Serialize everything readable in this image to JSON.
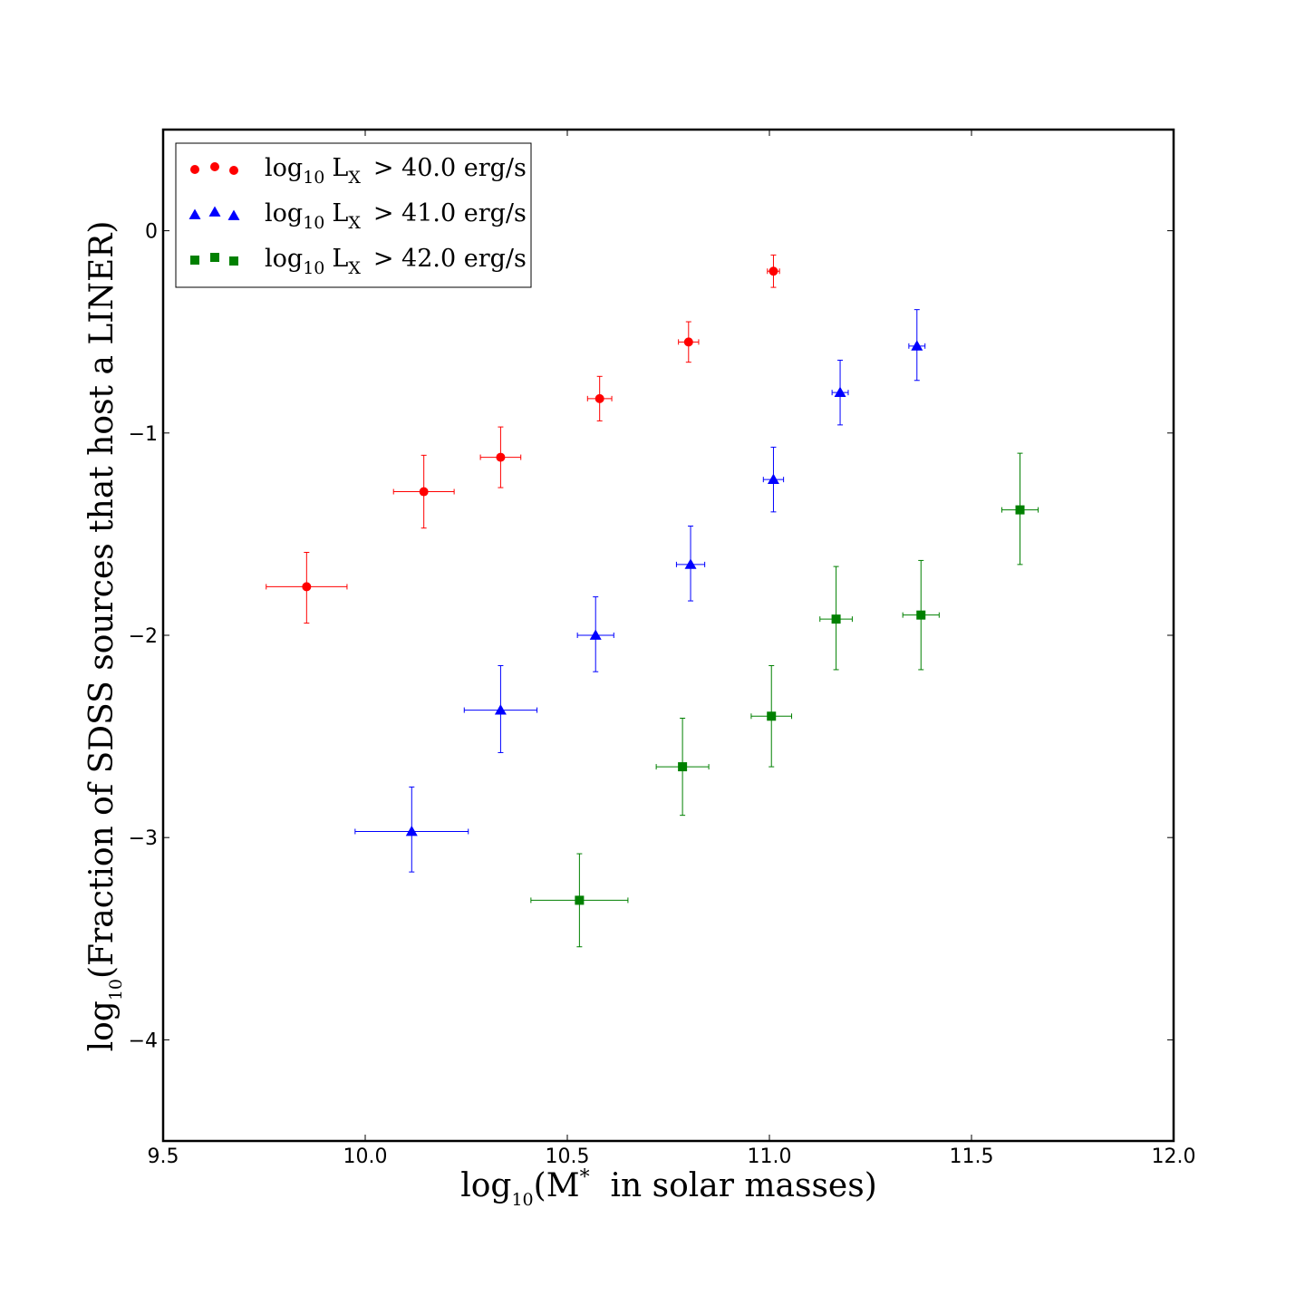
{
  "chart_data": {
    "type": "scatter",
    "xlabel_main": "log",
    "xlabel_sub": "10",
    "xlabel_rest": "(M",
    "xlabel_sup": "*",
    "xlabel_tail": "  in solar masses)",
    "ylabel_main": "log",
    "ylabel_sub": "10",
    "ylabel_rest": "(Fraction of SDSS sources that host a LINER)",
    "xlim": [
      9.5,
      12.0
    ],
    "ylim": [
      -4.5,
      0.5
    ],
    "xticks": [
      9.5,
      10.0,
      10.5,
      11.0,
      11.5,
      12.0
    ],
    "xtick_labels": [
      "9.5",
      "10.0",
      "10.5",
      "11.0",
      "11.5",
      "12.0"
    ],
    "yticks": [
      0,
      -1,
      -2,
      -3,
      -4
    ],
    "ytick_labels": [
      "0",
      "−1",
      "−2",
      "−3",
      "−4"
    ],
    "legend_position": "top-left",
    "series": [
      {
        "name": "LX > 40.0 erg/s",
        "legend_log": "log",
        "legend_sub": "10",
        "legend_L": "L",
        "legend_Lsub": "X",
        "legend_value": "> 40.0 erg/s",
        "color": "#ff0000",
        "marker": "circle",
        "points": [
          {
            "x": 9.855,
            "y": -1.76,
            "xerr": 0.1,
            "yerr_lo": 0.18,
            "yerr_hi": 0.17
          },
          {
            "x": 10.145,
            "y": -1.29,
            "xerr": 0.075,
            "yerr_lo": 0.18,
            "yerr_hi": 0.18
          },
          {
            "x": 10.335,
            "y": -1.12,
            "xerr": 0.05,
            "yerr_lo": 0.15,
            "yerr_hi": 0.15
          },
          {
            "x": 10.58,
            "y": -0.83,
            "xerr": 0.03,
            "yerr_lo": 0.11,
            "yerr_hi": 0.11
          },
          {
            "x": 10.8,
            "y": -0.55,
            "xerr": 0.025,
            "yerr_lo": 0.1,
            "yerr_hi": 0.1
          },
          {
            "x": 11.01,
            "y": -0.2,
            "xerr": 0.015,
            "yerr_lo": 0.08,
            "yerr_hi": 0.08
          }
        ]
      },
      {
        "name": "LX > 41.0 erg/s",
        "legend_log": "log",
        "legend_sub": "10",
        "legend_L": "L",
        "legend_Lsub": "X",
        "legend_value": "> 41.0 erg/s",
        "color": "#0000ff",
        "marker": "triangle",
        "points": [
          {
            "x": 10.115,
            "y": -2.97,
            "xerr": 0.14,
            "yerr_lo": 0.2,
            "yerr_hi": 0.22
          },
          {
            "x": 10.335,
            "y": -2.37,
            "xerr": 0.09,
            "yerr_lo": 0.21,
            "yerr_hi": 0.22
          },
          {
            "x": 10.57,
            "y": -2.0,
            "xerr": 0.045,
            "yerr_lo": 0.18,
            "yerr_hi": 0.19
          },
          {
            "x": 10.805,
            "y": -1.65,
            "xerr": 0.035,
            "yerr_lo": 0.18,
            "yerr_hi": 0.19
          },
          {
            "x": 11.01,
            "y": -1.23,
            "xerr": 0.025,
            "yerr_lo": 0.16,
            "yerr_hi": 0.16
          },
          {
            "x": 11.175,
            "y": -0.8,
            "xerr": 0.02,
            "yerr_lo": 0.16,
            "yerr_hi": 0.16
          },
          {
            "x": 11.365,
            "y": -0.57,
            "xerr": 0.02,
            "yerr_lo": 0.17,
            "yerr_hi": 0.18
          }
        ]
      },
      {
        "name": "LX > 42.0 erg/s",
        "legend_log": "log",
        "legend_sub": "10",
        "legend_L": "L",
        "legend_Lsub": "X",
        "legend_value": "> 42.0 erg/s",
        "color": "#008000",
        "marker": "square",
        "points": [
          {
            "x": 10.53,
            "y": -3.31,
            "xerr": 0.12,
            "yerr_lo": 0.23,
            "yerr_hi": 0.23
          },
          {
            "x": 10.785,
            "y": -2.65,
            "xerr": 0.065,
            "yerr_lo": 0.24,
            "yerr_hi": 0.24
          },
          {
            "x": 11.005,
            "y": -2.4,
            "xerr": 0.05,
            "yerr_lo": 0.25,
            "yerr_hi": 0.25
          },
          {
            "x": 11.165,
            "y": -1.92,
            "xerr": 0.04,
            "yerr_lo": 0.25,
            "yerr_hi": 0.26
          },
          {
            "x": 11.375,
            "y": -1.9,
            "xerr": 0.045,
            "yerr_lo": 0.27,
            "yerr_hi": 0.27
          },
          {
            "x": 11.62,
            "y": -1.38,
            "xerr": 0.045,
            "yerr_lo": 0.27,
            "yerr_hi": 0.28
          }
        ]
      }
    ]
  }
}
